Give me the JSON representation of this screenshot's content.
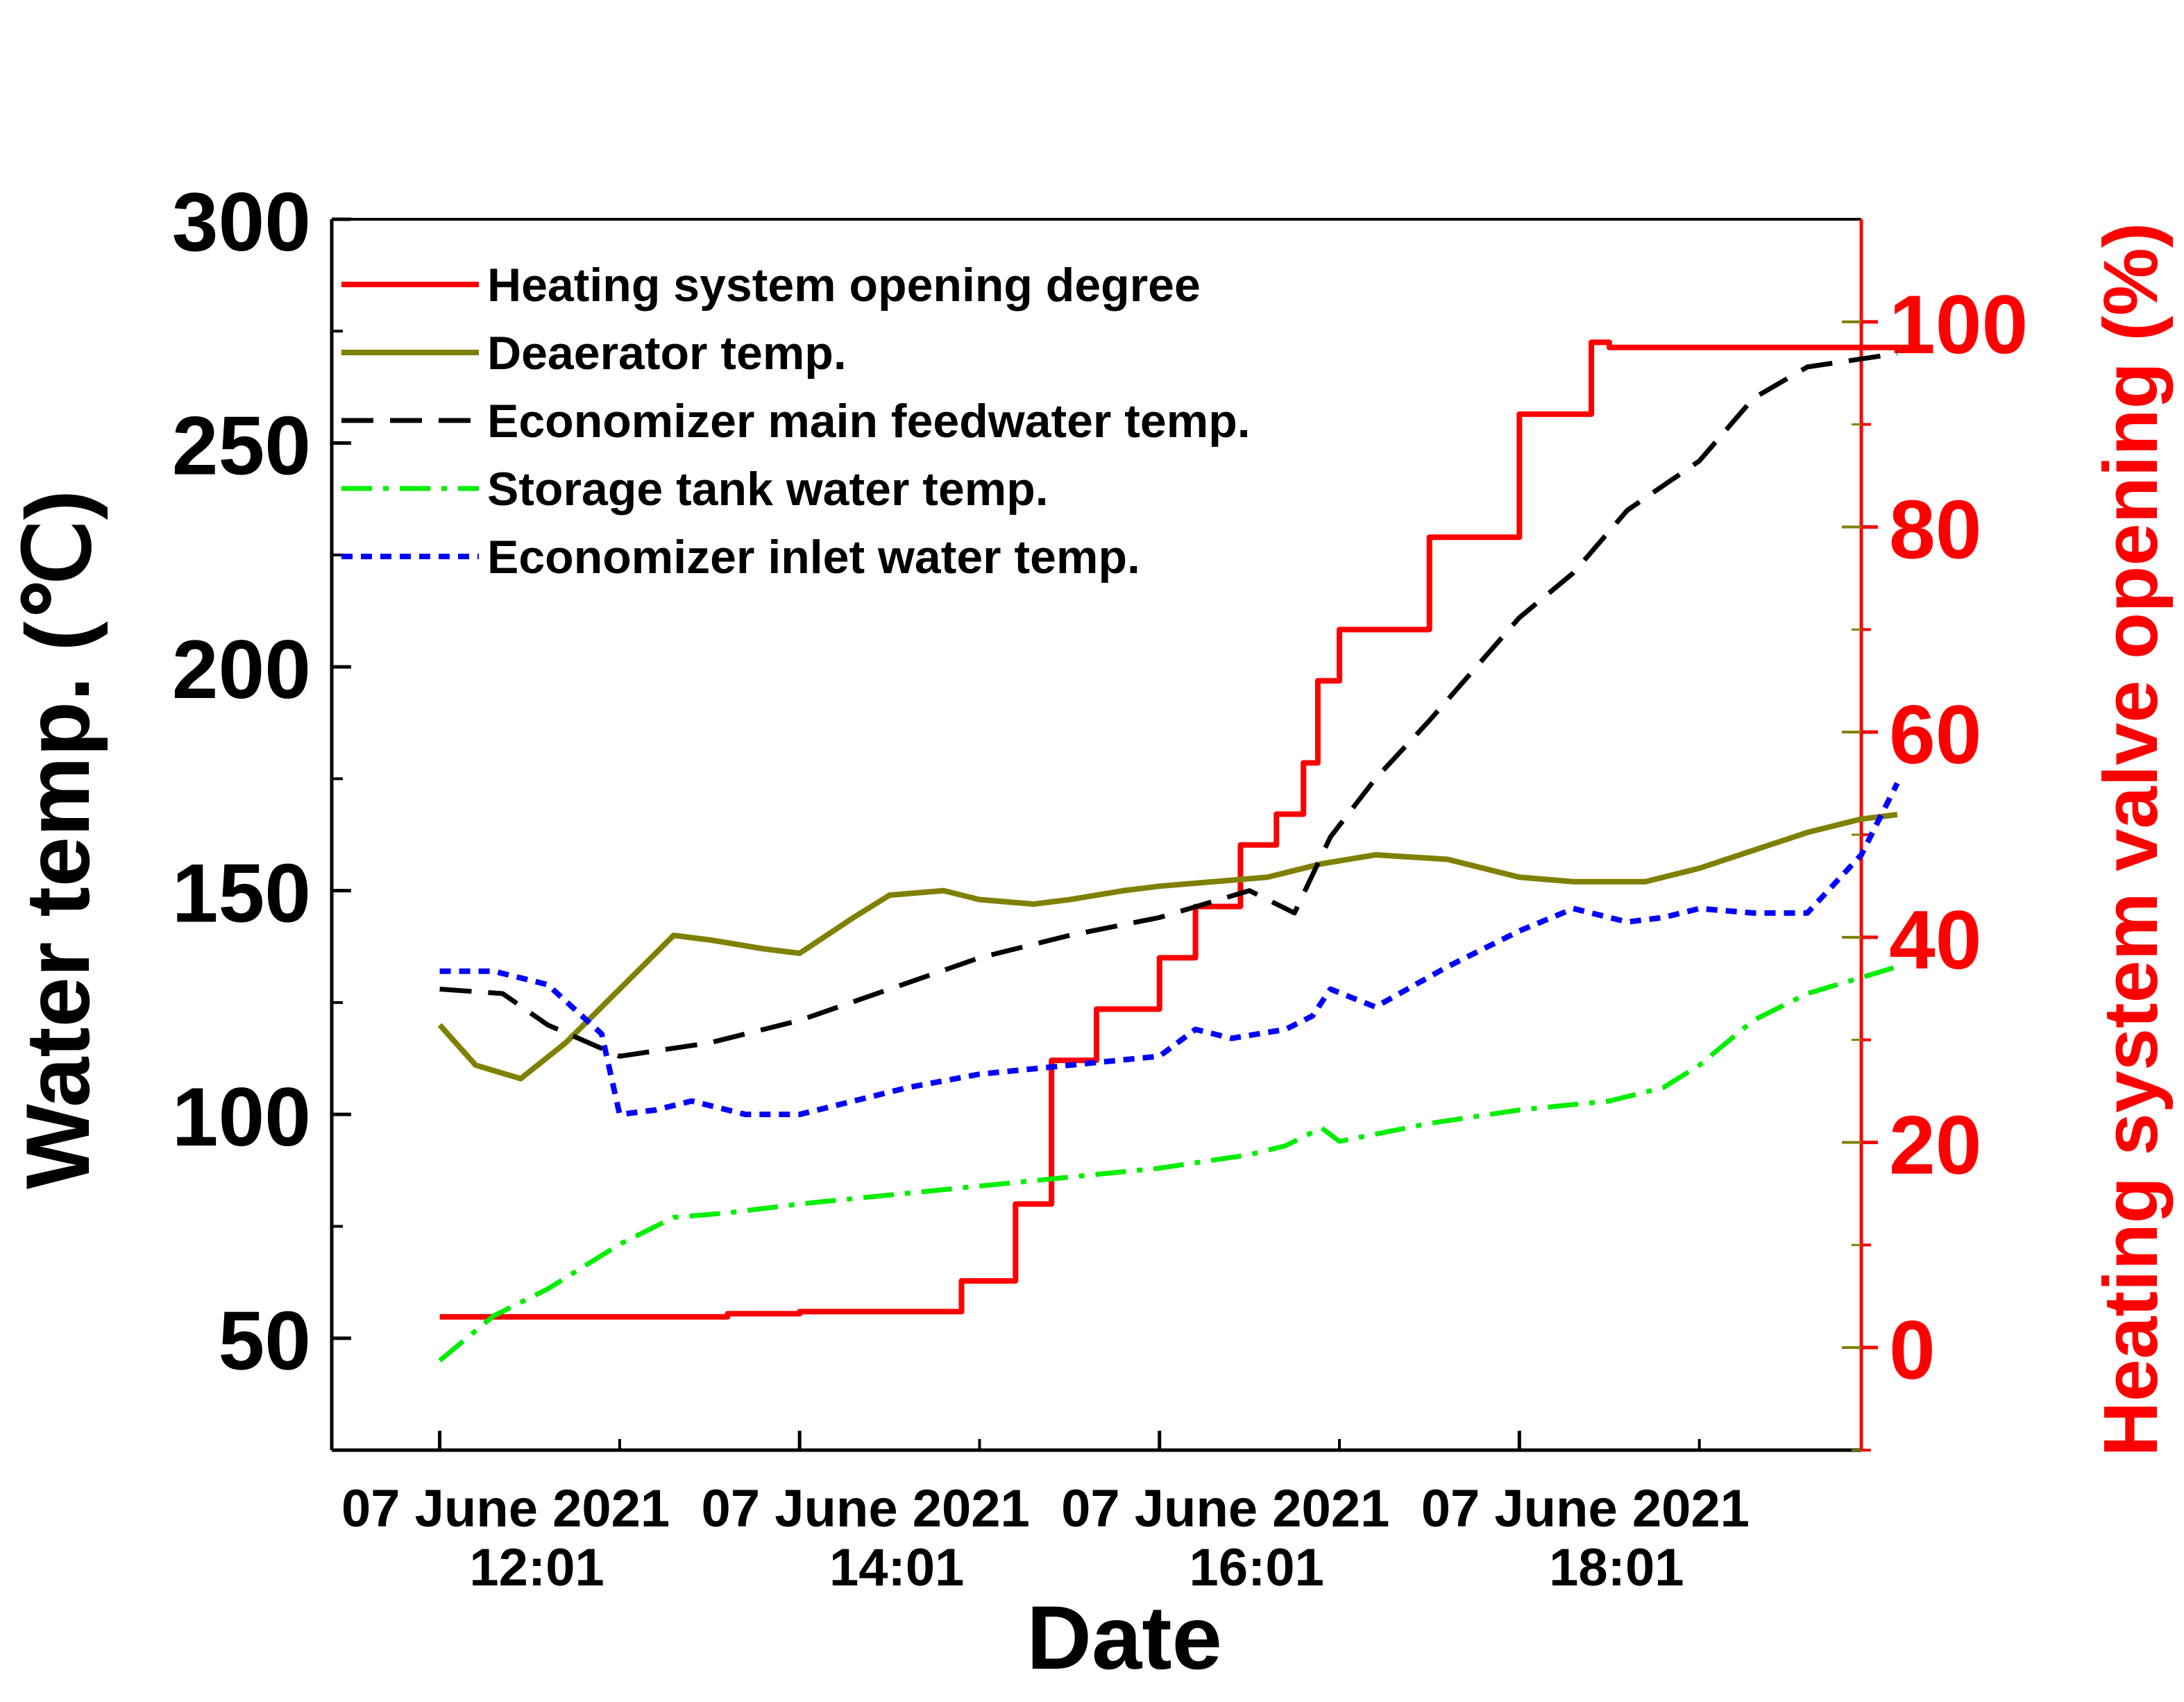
{
  "chart_data": {
    "type": "line",
    "xlabel": "Date",
    "ylabel_left": "Water temp. (℃)",
    "ylabel_right": "Heating system valve opening (%)",
    "x_unit": "hours",
    "xlim": [
      11.4,
      19.9
    ],
    "ylim_left": [
      25,
      300
    ],
    "ylim_right": [
      -10,
      110
    ],
    "x_ticks": [
      {
        "value": 12,
        "date": "07 June 2021",
        "time": "12:01"
      },
      {
        "value": 14,
        "date": "07 June 2021",
        "time": "14:01"
      },
      {
        "value": 16,
        "date": "07 June 2021",
        "time": "16:01"
      },
      {
        "value": 18,
        "date": "07 June 2021",
        "time": "18:01"
      }
    ],
    "x_minor_ticks": [
      13,
      15,
      17,
      19
    ],
    "left_ticks": [
      50,
      100,
      150,
      200,
      250,
      300
    ],
    "right_ticks": [
      0,
      20,
      40,
      60,
      80,
      100
    ],
    "right_minor_ticks": [
      -10,
      10,
      30,
      50,
      70,
      90
    ],
    "legend": [
      {
        "label": "Heating system opening degree",
        "color": "#ff0000",
        "dash": "solid"
      },
      {
        "label": "Deaerator temp.",
        "color": "#808000",
        "dash": "solid"
      },
      {
        "label": "Economizer main feedwater temp.",
        "color": "#000000",
        "dash": "dash"
      },
      {
        "label": "Storage tank water temp.",
        "color": "#00ee00",
        "dash": "dashdot"
      },
      {
        "label": "Economizer inlet water temp.",
        "color": "#0000ff",
        "dash": "dot"
      }
    ],
    "series": [
      {
        "name": "Heating system opening degree",
        "axis": "right",
        "color": "#ff0000",
        "x": [
          12.0,
          13.0,
          13.6,
          14.0,
          14.5,
          14.9,
          14.9,
          15.2,
          15.2,
          15.4,
          15.4,
          15.65,
          15.65,
          16.0,
          16.2,
          16.45,
          16.65,
          16.8,
          16.88,
          17.0,
          17.5,
          18.0,
          18.4
        ],
        "y": [
          3,
          3,
          3.3,
          3.5,
          3.5,
          3.5,
          6.5,
          6.5,
          14,
          22,
          28,
          28,
          33,
          38,
          43,
          49,
          52,
          57,
          65,
          70,
          79,
          91,
          98
        ],
        "y_tail": [
          97.5,
          97.5,
          97.5,
          97.5,
          97.5,
          97.5
        ],
        "x_tail": [
          18.5,
          18.9,
          19.3,
          19.6,
          19.9,
          20.1
        ]
      },
      {
        "name": "Deaerator temp.",
        "axis": "left",
        "color": "#808000",
        "x": [
          12.0,
          12.2,
          12.45,
          12.7,
          13.0,
          13.3,
          13.5,
          13.8,
          14.0,
          14.3,
          14.5,
          14.8,
          15.0,
          15.3,
          15.5,
          15.8,
          16.0,
          16.3,
          16.6,
          16.9,
          17.2,
          17.6,
          18.0,
          18.3,
          18.7,
          19.0,
          19.3,
          19.6,
          19.9,
          20.1
        ],
        "y": [
          120,
          111,
          108,
          116,
          128,
          140,
          139,
          137,
          136,
          144,
          149,
          150,
          148,
          147,
          148,
          150,
          151,
          152,
          153,
          156,
          158,
          157,
          153,
          152,
          152,
          155,
          159,
          163,
          166,
          167
        ]
      },
      {
        "name": "Economizer main feedwater temp.",
        "axis": "left",
        "color": "#000000",
        "x": [
          12.0,
          12.35,
          12.6,
          13.0,
          13.5,
          14.0,
          14.5,
          15.0,
          15.5,
          16.0,
          16.5,
          16.75,
          16.95,
          17.2,
          17.5,
          18.0,
          18.3,
          18.6,
          19.0,
          19.3,
          19.6,
          20.1
        ],
        "y": [
          128,
          127,
          120,
          113,
          116,
          121,
          128,
          135,
          140,
          144,
          150,
          145,
          162,
          175,
          188,
          211,
          221,
          235,
          246,
          260,
          267,
          270
        ]
      },
      {
        "name": "Storage tank water temp.",
        "axis": "left",
        "color": "#00ee00",
        "x": [
          12.0,
          12.3,
          12.6,
          12.8,
          13.0,
          13.3,
          13.6,
          14.0,
          14.5,
          15.0,
          15.5,
          16.0,
          16.5,
          16.7,
          16.9,
          17.0,
          17.5,
          18.0,
          18.5,
          18.8,
          19.0,
          19.3,
          19.6,
          20.1
        ],
        "y": [
          45,
          55,
          61,
          66,
          71,
          77,
          78,
          80,
          82,
          84,
          86,
          88,
          91,
          93,
          97,
          94,
          98,
          101,
          103,
          106,
          111,
          121,
          127,
          133
        ]
      },
      {
        "name": "Economizer inlet water temp.",
        "axis": "left",
        "color": "#0000ff",
        "x": [
          12.0,
          12.3,
          12.6,
          12.9,
          13.0,
          13.2,
          13.4,
          13.7,
          14.0,
          14.3,
          14.6,
          15.0,
          15.5,
          16.0,
          16.2,
          16.4,
          16.7,
          16.85,
          16.95,
          17.2,
          17.6,
          18.0,
          18.3,
          18.6,
          18.8,
          19.0,
          19.3,
          19.6,
          19.9,
          20.1
        ],
        "y": [
          132,
          132,
          129,
          118,
          100,
          101,
          103,
          100,
          100,
          103,
          106,
          109,
          111,
          113,
          119,
          117,
          119,
          122,
          128,
          124,
          133,
          141,
          146,
          143,
          144,
          146,
          145,
          145,
          158,
          174
        ]
      }
    ]
  }
}
